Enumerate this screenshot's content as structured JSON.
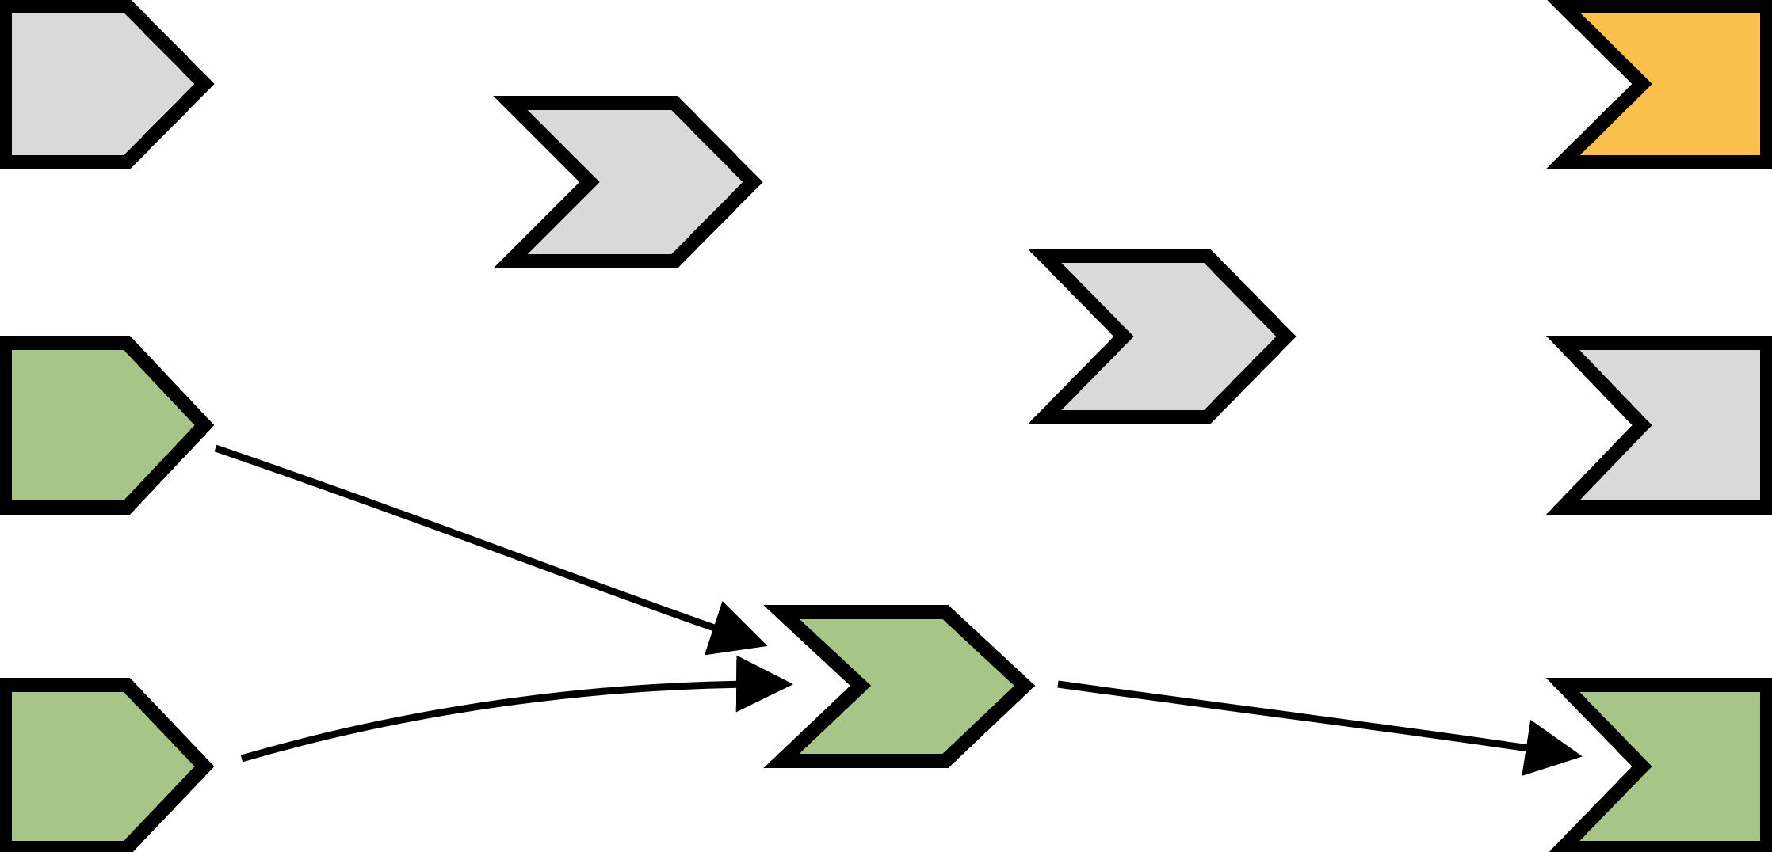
{
  "diagram": {
    "colors": {
      "inactive": "#d9d9d9",
      "active": "#a6c587",
      "output": "#fbbf4b",
      "outline": "#000000",
      "background": "#ffffff"
    },
    "nodes": [
      {
        "id": "input-1",
        "kind": "input",
        "state": "inactive"
      },
      {
        "id": "input-2",
        "kind": "input",
        "state": "active"
      },
      {
        "id": "input-3",
        "kind": "input",
        "state": "active"
      },
      {
        "id": "hidden-1-1",
        "kind": "hidden",
        "state": "inactive"
      },
      {
        "id": "hidden-1-2",
        "kind": "hidden",
        "state": "active"
      },
      {
        "id": "hidden-2-1",
        "kind": "hidden",
        "state": "inactive"
      },
      {
        "id": "output-1",
        "kind": "output",
        "state": "output"
      },
      {
        "id": "output-2",
        "kind": "output",
        "state": "inactive"
      },
      {
        "id": "output-3",
        "kind": "output",
        "state": "active"
      }
    ],
    "edges": [
      {
        "from": "input-2",
        "to": "hidden-1-2"
      },
      {
        "from": "input-3",
        "to": "hidden-1-2"
      },
      {
        "from": "hidden-1-2",
        "to": "output-3"
      }
    ]
  }
}
